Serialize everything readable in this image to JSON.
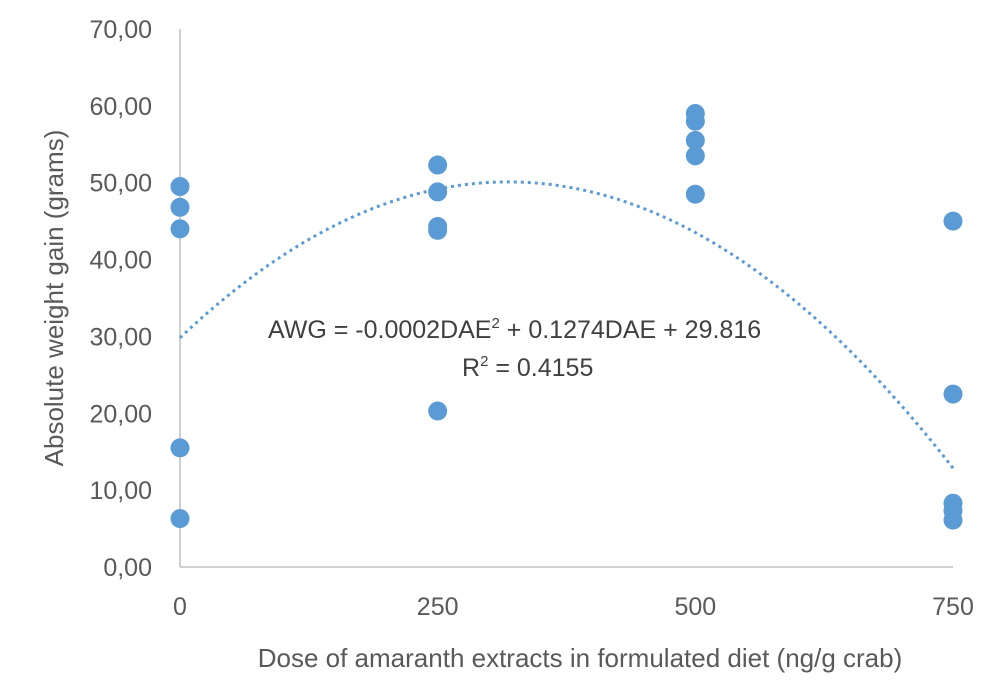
{
  "chart_data": {
    "type": "scatter",
    "xlabel": "Dose of amaranth extracts in formulated diet (ng/g crab)",
    "ylabel": "Absolute  weight gain (grams)",
    "xlim": [
      0,
      750
    ],
    "ylim": [
      0,
      70
    ],
    "x_ticks": [
      "0",
      "250",
      "500",
      "750"
    ],
    "x_tick_values": [
      0,
      250,
      500,
      750
    ],
    "y_ticks": [
      "0,00",
      "10,00",
      "20,00",
      "30,00",
      "40,00",
      "50,00",
      "60,00",
      "70,00"
    ],
    "y_tick_values": [
      0,
      10,
      20,
      30,
      40,
      50,
      60,
      70
    ],
    "grid": false,
    "legend": "none",
    "series": [
      {
        "points": [
          {
            "x": 0,
            "y": 49.5
          },
          {
            "x": 0,
            "y": 46.8
          },
          {
            "x": 0,
            "y": 44.0
          },
          {
            "x": 0,
            "y": 15.5
          },
          {
            "x": 0,
            "y": 6.3
          },
          {
            "x": 250,
            "y": 52.3
          },
          {
            "x": 250,
            "y": 48.8
          },
          {
            "x": 250,
            "y": 44.3
          },
          {
            "x": 250,
            "y": 43.8
          },
          {
            "x": 250,
            "y": 20.3
          },
          {
            "x": 500,
            "y": 59.0
          },
          {
            "x": 500,
            "y": 58.0
          },
          {
            "x": 500,
            "y": 55.5
          },
          {
            "x": 500,
            "y": 53.5
          },
          {
            "x": 500,
            "y": 48.5
          },
          {
            "x": 750,
            "y": 45.0
          },
          {
            "x": 750,
            "y": 22.5
          },
          {
            "x": 750,
            "y": 8.3
          },
          {
            "x": 750,
            "y": 7.3
          },
          {
            "x": 750,
            "y": 6.1
          }
        ]
      }
    ],
    "trendline": {
      "type": "polynomial",
      "order": 2,
      "a": -0.0002,
      "b": 0.1274,
      "c": 29.816,
      "x_range": [
        0,
        750
      ]
    },
    "annotations": {
      "eq_main": "AWG = -0.0002DAE",
      "eq_sup": "2",
      "eq_rest": " + 0.1274DAE + 29.816",
      "r2_prefix": "R",
      "r2_sup": "2",
      "r2_rest": " = 0.4155"
    },
    "colors": {
      "point": "#5b9bd5",
      "trendline": "#5b9bd5",
      "axis": "#bfbfbf",
      "text": "#595959"
    }
  }
}
